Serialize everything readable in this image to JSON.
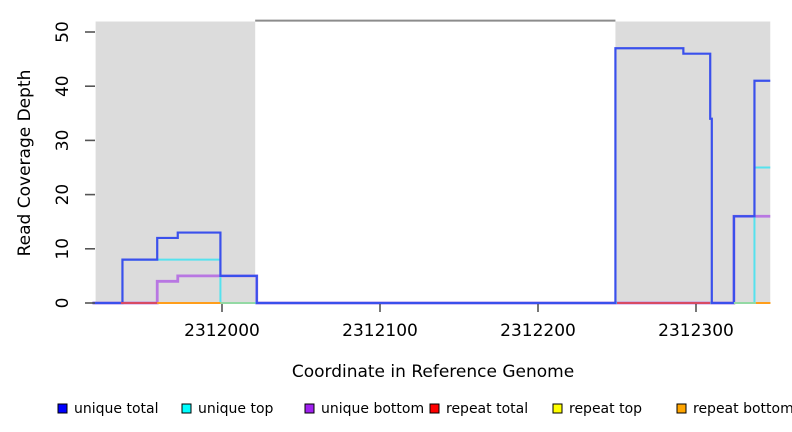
{
  "figure": {
    "background": "#ffffff",
    "shaded_region_color": "#dcdcdc",
    "clip_line_color": "#8c8c8c",
    "tick_color": "#555555",
    "text_color": "#000000"
  },
  "chart_data": {
    "type": "line",
    "subtype": "step-coverage",
    "title": "",
    "xlabel": "Coordinate in Reference Genome",
    "ylabel": "Read Coverage Depth",
    "xlim": [
      2311918,
      2312360
    ],
    "ylim": [
      0,
      52
    ],
    "grid": false,
    "legend_position": "bottom",
    "x_ticks": [
      2312000,
      2312100,
      2312200,
      2312300
    ],
    "x_tick_labels": [
      "2312000",
      "2312100",
      "2312200",
      "2312300"
    ],
    "y_ticks": [
      0,
      10,
      20,
      30,
      40,
      50
    ],
    "y_tick_labels": [
      "0",
      "10",
      "20",
      "30",
      "40",
      "50"
    ],
    "shaded_regions": [
      {
        "from": 2311920,
        "to": 2312021
      },
      {
        "from": 2312249,
        "to": 2312347
      }
    ],
    "clipped_top_line": {
      "y": 52,
      "from": 2312021,
      "to": 2312249
    },
    "series": [
      {
        "name": "unique total",
        "legend_color": "#0000FF",
        "line_color": "#3A50EC",
        "steps": [
          [
            2311918,
            0
          ],
          [
            2311937,
            8
          ],
          [
            2311959,
            12
          ],
          [
            2311972,
            13
          ],
          [
            2311999,
            5
          ],
          [
            2312022,
            0
          ],
          [
            2312249,
            47
          ],
          [
            2312292,
            46
          ],
          [
            2312309,
            34
          ],
          [
            2312310,
            0
          ],
          [
            2312324,
            16
          ],
          [
            2312337,
            41
          ]
        ],
        "end": 2312347
      },
      {
        "name": "unique top",
        "legend_color": "#00FFFF",
        "line_color": "#55E2EE",
        "steps": [
          [
            2311918,
            0
          ],
          [
            2311937,
            8
          ],
          [
            2311999,
            0
          ],
          [
            2312337,
            25
          ]
        ],
        "end": 2312347
      },
      {
        "name": "unique bottom",
        "legend_color": "#A020F0",
        "line_color": "#B877E2",
        "steps": [
          [
            2311918,
            0
          ],
          [
            2311959,
            4
          ],
          [
            2311972,
            5
          ],
          [
            2312022,
            0
          ],
          [
            2312324,
            16
          ]
        ],
        "end": 2312347
      },
      {
        "name": "repeat total",
        "legend_color": "#FF0000",
        "line_color": "#D84A63",
        "steps": [
          [
            2311918,
            0
          ]
        ],
        "end": 2312347
      },
      {
        "name": "repeat top",
        "legend_color": "#FFFF00",
        "line_color": "#E8E460",
        "steps": [
          [
            2311918,
            0
          ]
        ],
        "end": 2312347
      },
      {
        "name": "repeat bottom",
        "legend_color": "#FFA500",
        "line_color": "#FF9E1B",
        "steps": [
          [
            2311918,
            0
          ]
        ],
        "end": 2312347
      }
    ],
    "baseline_visible_segments": [
      {
        "series": "repeat total",
        "color": "#D84A63",
        "from": 2311936,
        "to": 2311959
      },
      {
        "series": "repeat bottom",
        "color": "#FF9E1B",
        "from": 2311959,
        "to": 2311999
      },
      {
        "series": "repeat top",
        "color": "#93D9A4",
        "from": 2311999,
        "to": 2312021
      },
      {
        "series": "repeat total",
        "color": "#D84A63",
        "from": 2312250,
        "to": 2312309
      },
      {
        "series": "repeat top",
        "color": "#93D9A4",
        "from": 2312324,
        "to": 2312338
      },
      {
        "series": "repeat bottom",
        "color": "#FF9E1B",
        "from": 2312338,
        "to": 2312347
      }
    ]
  },
  "legend": {
    "items": [
      {
        "label": "unique total",
        "color": "#0000FF"
      },
      {
        "label": "unique top",
        "color": "#00FFFF"
      },
      {
        "label": "unique bottom",
        "color": "#A020F0"
      },
      {
        "label": "repeat total",
        "color": "#FF0000"
      },
      {
        "label": "repeat top",
        "color": "#FFFF00"
      },
      {
        "label": "repeat bottom",
        "color": "#FFA500"
      }
    ]
  }
}
